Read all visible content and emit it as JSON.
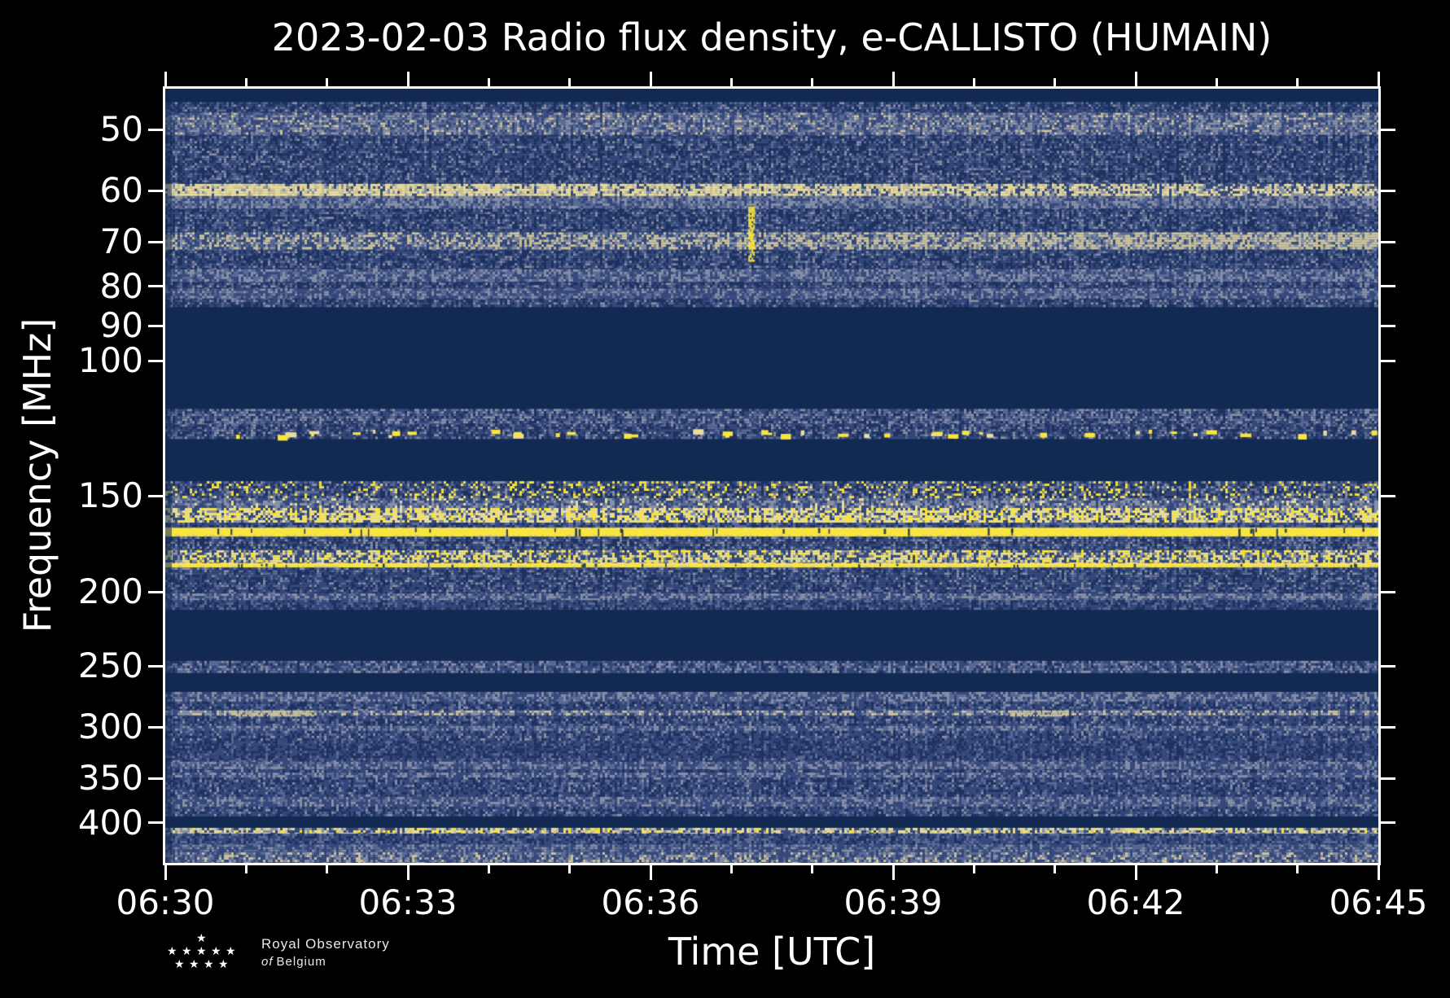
{
  "logo": {
    "text_line1": "Royal Observatory",
    "text_line2_italic": "of",
    "text_line2": "Belgium",
    "star_glyph": "★",
    "star_rows": [
      1,
      5,
      4
    ]
  },
  "chart_data": {
    "type": "heatmap",
    "title": "2023-02-03 Radio flux density, e-CALLISTO (HUMAIN)",
    "xlabel": "Time [UTC]",
    "ylabel": "Frequency [MHz]",
    "x_ticks": [
      "06:30",
      "06:33",
      "06:36",
      "06:39",
      "06:42",
      "06:45"
    ],
    "x_minor_per_major": 2,
    "x_range_utc": [
      "06:30",
      "06:45"
    ],
    "y_ticks_mhz": [
      50,
      60,
      70,
      80,
      90,
      100,
      150,
      200,
      250,
      300,
      350,
      400
    ],
    "y_scale": "log",
    "f_min_mhz": 44.2,
    "f_max_mhz": 451,
    "grid": false,
    "legend": "none",
    "palette": {
      "navy": "#122a52",
      "dkblue": "#1f3261",
      "blue": "#36497c",
      "slate": "#5b6b95",
      "gray": "#8790a6",
      "tan": "#cdc49c",
      "cream": "#e9dd9a",
      "yellow": "#f8e53e"
    },
    "background": "navy",
    "bands": [
      {
        "f1": 46,
        "f2": 85,
        "kind": "noise",
        "mix": [
          [
            "blue",
            0.42
          ],
          [
            "dkblue",
            0.3
          ],
          [
            "slate",
            0.2
          ],
          [
            "gray",
            0.08
          ]
        ]
      },
      {
        "f1": 47.5,
        "f2": 50.5,
        "kind": "noise",
        "mix": [
          [
            "gray",
            0.3
          ],
          [
            "slate",
            0.3
          ],
          [
            "blue",
            0.3
          ],
          [
            "tan",
            0.1
          ]
        ]
      },
      {
        "f1": 58.8,
        "f2": 61,
        "kind": "noise",
        "mix": [
          [
            "cream",
            0.45
          ],
          [
            "tan",
            0.25
          ],
          [
            "gray",
            0.15
          ],
          [
            "blue",
            0.15
          ]
        ],
        "fade": "left"
      },
      {
        "f1": 61,
        "f2": 63,
        "kind": "noise",
        "mix": [
          [
            "gray",
            0.35
          ],
          [
            "slate",
            0.35
          ],
          [
            "blue",
            0.3
          ]
        ]
      },
      {
        "f1": 68,
        "f2": 71.5,
        "kind": "noise",
        "mix": [
          [
            "tan",
            0.4
          ],
          [
            "gray",
            0.25
          ],
          [
            "slate",
            0.15
          ],
          [
            "blue",
            0.2
          ]
        ],
        "fade": "right"
      },
      {
        "f1": 76,
        "f2": 78.5,
        "kind": "noise",
        "mix": [
          [
            "gray",
            0.3
          ],
          [
            "slate",
            0.35
          ],
          [
            "blue",
            0.35
          ]
        ]
      },
      {
        "f1": 80.5,
        "f2": 82.5,
        "kind": "noise",
        "mix": [
          [
            "gray",
            0.25
          ],
          [
            "slate",
            0.3
          ],
          [
            "blue",
            0.45
          ]
        ]
      },
      {
        "f1": 115.5,
        "f2": 121,
        "kind": "noise",
        "mix": [
          [
            "blue",
            0.35
          ],
          [
            "slate",
            0.3
          ],
          [
            "gray",
            0.2
          ],
          [
            "dkblue",
            0.15
          ]
        ]
      },
      {
        "f1": 121,
        "f2": 126,
        "kind": "noise",
        "mix": [
          [
            "blue",
            0.4
          ],
          [
            "dkblue",
            0.3
          ],
          [
            "slate",
            0.2
          ],
          [
            "gray",
            0.1
          ]
        ],
        "blobs": 46
      },
      {
        "f1": 143.5,
        "f2": 151,
        "kind": "noise",
        "mix": [
          [
            "blue",
            0.31
          ],
          [
            "dkblue",
            0.22
          ],
          [
            "slate",
            0.2
          ],
          [
            "gray",
            0.11
          ],
          [
            "yellow",
            0.16
          ]
        ]
      },
      {
        "f1": 151,
        "f2": 155.5,
        "kind": "noise",
        "mix": [
          [
            "gray",
            0.3
          ],
          [
            "slate",
            0.28
          ],
          [
            "blue",
            0.32
          ],
          [
            "cream",
            0.1
          ]
        ]
      },
      {
        "f1": 155.5,
        "f2": 162.5,
        "kind": "noise",
        "mix": [
          [
            "cream",
            0.35
          ],
          [
            "yellow",
            0.25
          ],
          [
            "gray",
            0.2
          ],
          [
            "blue",
            0.2
          ]
        ]
      },
      {
        "f1": 162.5,
        "f2": 165,
        "kind": "noise",
        "mix": [
          [
            "blue",
            0.4
          ],
          [
            "dkblue",
            0.3
          ],
          [
            "slate",
            0.3
          ]
        ]
      },
      {
        "f1": 165,
        "f2": 169.5,
        "kind": "line",
        "color": "yellow"
      },
      {
        "f1": 169.5,
        "f2": 176.5,
        "kind": "noise",
        "mix": [
          [
            "blue",
            0.4
          ],
          [
            "dkblue",
            0.25
          ],
          [
            "slate",
            0.2
          ],
          [
            "gray",
            0.15
          ]
        ]
      },
      {
        "f1": 176.5,
        "f2": 183.5,
        "kind": "noise",
        "mix": [
          [
            "cream",
            0.28
          ],
          [
            "yellow",
            0.18
          ],
          [
            "gray",
            0.22
          ],
          [
            "blue",
            0.32
          ]
        ]
      },
      {
        "f1": 183.5,
        "f2": 186,
        "kind": "line",
        "color": "yellow"
      },
      {
        "f1": 186,
        "f2": 201,
        "kind": "noise",
        "mix": [
          [
            "blue",
            0.45
          ],
          [
            "dkblue",
            0.28
          ],
          [
            "slate",
            0.17
          ],
          [
            "gray",
            0.1
          ]
        ]
      },
      {
        "f1": 201,
        "f2": 205,
        "kind": "noise",
        "mix": [
          [
            "gray",
            0.35
          ],
          [
            "slate",
            0.3
          ],
          [
            "blue",
            0.35
          ]
        ]
      },
      {
        "f1": 205,
        "f2": 211,
        "kind": "noise",
        "mix": [
          [
            "blue",
            0.5
          ],
          [
            "dkblue",
            0.3
          ],
          [
            "slate",
            0.2
          ]
        ]
      },
      {
        "f1": 246,
        "f2": 254,
        "kind": "noise",
        "mix": [
          [
            "blue",
            0.38
          ],
          [
            "slate",
            0.3
          ],
          [
            "gray",
            0.18
          ],
          [
            "dkblue",
            0.14
          ]
        ]
      },
      {
        "f1": 270,
        "f2": 278,
        "kind": "noise",
        "mix": [
          [
            "gray",
            0.28
          ],
          [
            "slate",
            0.32
          ],
          [
            "blue",
            0.4
          ]
        ]
      },
      {
        "f1": 278,
        "f2": 390,
        "kind": "noise",
        "mix": [
          [
            "blue",
            0.48
          ],
          [
            "dkblue",
            0.26
          ],
          [
            "slate",
            0.19
          ],
          [
            "gray",
            0.07
          ]
        ]
      },
      {
        "f1": 285.5,
        "f2": 289.5,
        "kind": "noise",
        "mix": [
          [
            "tan",
            0.25
          ],
          [
            "gray",
            0.3
          ],
          [
            "slate",
            0.2
          ],
          [
            "blue",
            0.25
          ]
        ]
      },
      {
        "f1": 299,
        "f2": 303,
        "kind": "noise",
        "mix": [
          [
            "gray",
            0.32
          ],
          [
            "slate",
            0.3
          ],
          [
            "blue",
            0.38
          ]
        ]
      },
      {
        "f1": 313,
        "f2": 328,
        "kind": "noise",
        "mix": [
          [
            "blue",
            0.45
          ],
          [
            "dkblue",
            0.4
          ],
          [
            "slate",
            0.15
          ]
        ]
      },
      {
        "f1": 333,
        "f2": 340,
        "kind": "noise",
        "mix": [
          [
            "gray",
            0.28
          ],
          [
            "slate",
            0.32
          ],
          [
            "blue",
            0.4
          ]
        ]
      },
      {
        "f1": 344,
        "f2": 348,
        "kind": "noise",
        "mix": [
          [
            "gray",
            0.3
          ],
          [
            "slate",
            0.3
          ],
          [
            "blue",
            0.4
          ]
        ]
      },
      {
        "f1": 370,
        "f2": 381,
        "kind": "noise",
        "mix": [
          [
            "gray",
            0.25
          ],
          [
            "slate",
            0.32
          ],
          [
            "blue",
            0.43
          ]
        ]
      },
      {
        "f1": 406,
        "f2": 413,
        "kind": "noise",
        "mix": [
          [
            "cream",
            0.25
          ],
          [
            "tan",
            0.2
          ],
          [
            "yellow",
            0.12
          ],
          [
            "gray",
            0.18
          ],
          [
            "blue",
            0.25
          ]
        ]
      },
      {
        "f1": 413,
        "f2": 427,
        "kind": "noise",
        "mix": [
          [
            "blue",
            0.5
          ],
          [
            "dkblue",
            0.26
          ],
          [
            "slate",
            0.24
          ]
        ]
      },
      {
        "f1": 427,
        "f2": 437,
        "kind": "noise",
        "mix": [
          [
            "gray",
            0.24
          ],
          [
            "slate",
            0.34
          ],
          [
            "blue",
            0.42
          ]
        ]
      },
      {
        "f1": 437,
        "f2": 450,
        "kind": "noise",
        "mix": [
          [
            "gray",
            0.22
          ],
          [
            "tan",
            0.14
          ],
          [
            "slate",
            0.3
          ],
          [
            "blue",
            0.34
          ]
        ]
      }
    ],
    "events": [
      {
        "t": 0.483,
        "f1": 63,
        "f2": 74,
        "color": "yellow",
        "width": 7
      },
      {
        "t": 0.09,
        "f1": 285.5,
        "f2": 289.5,
        "color": "tan",
        "width": 95
      },
      {
        "t": 0.72,
        "f1": 285.5,
        "f2": 289.5,
        "color": "tan",
        "width": 70
      }
    ]
  }
}
